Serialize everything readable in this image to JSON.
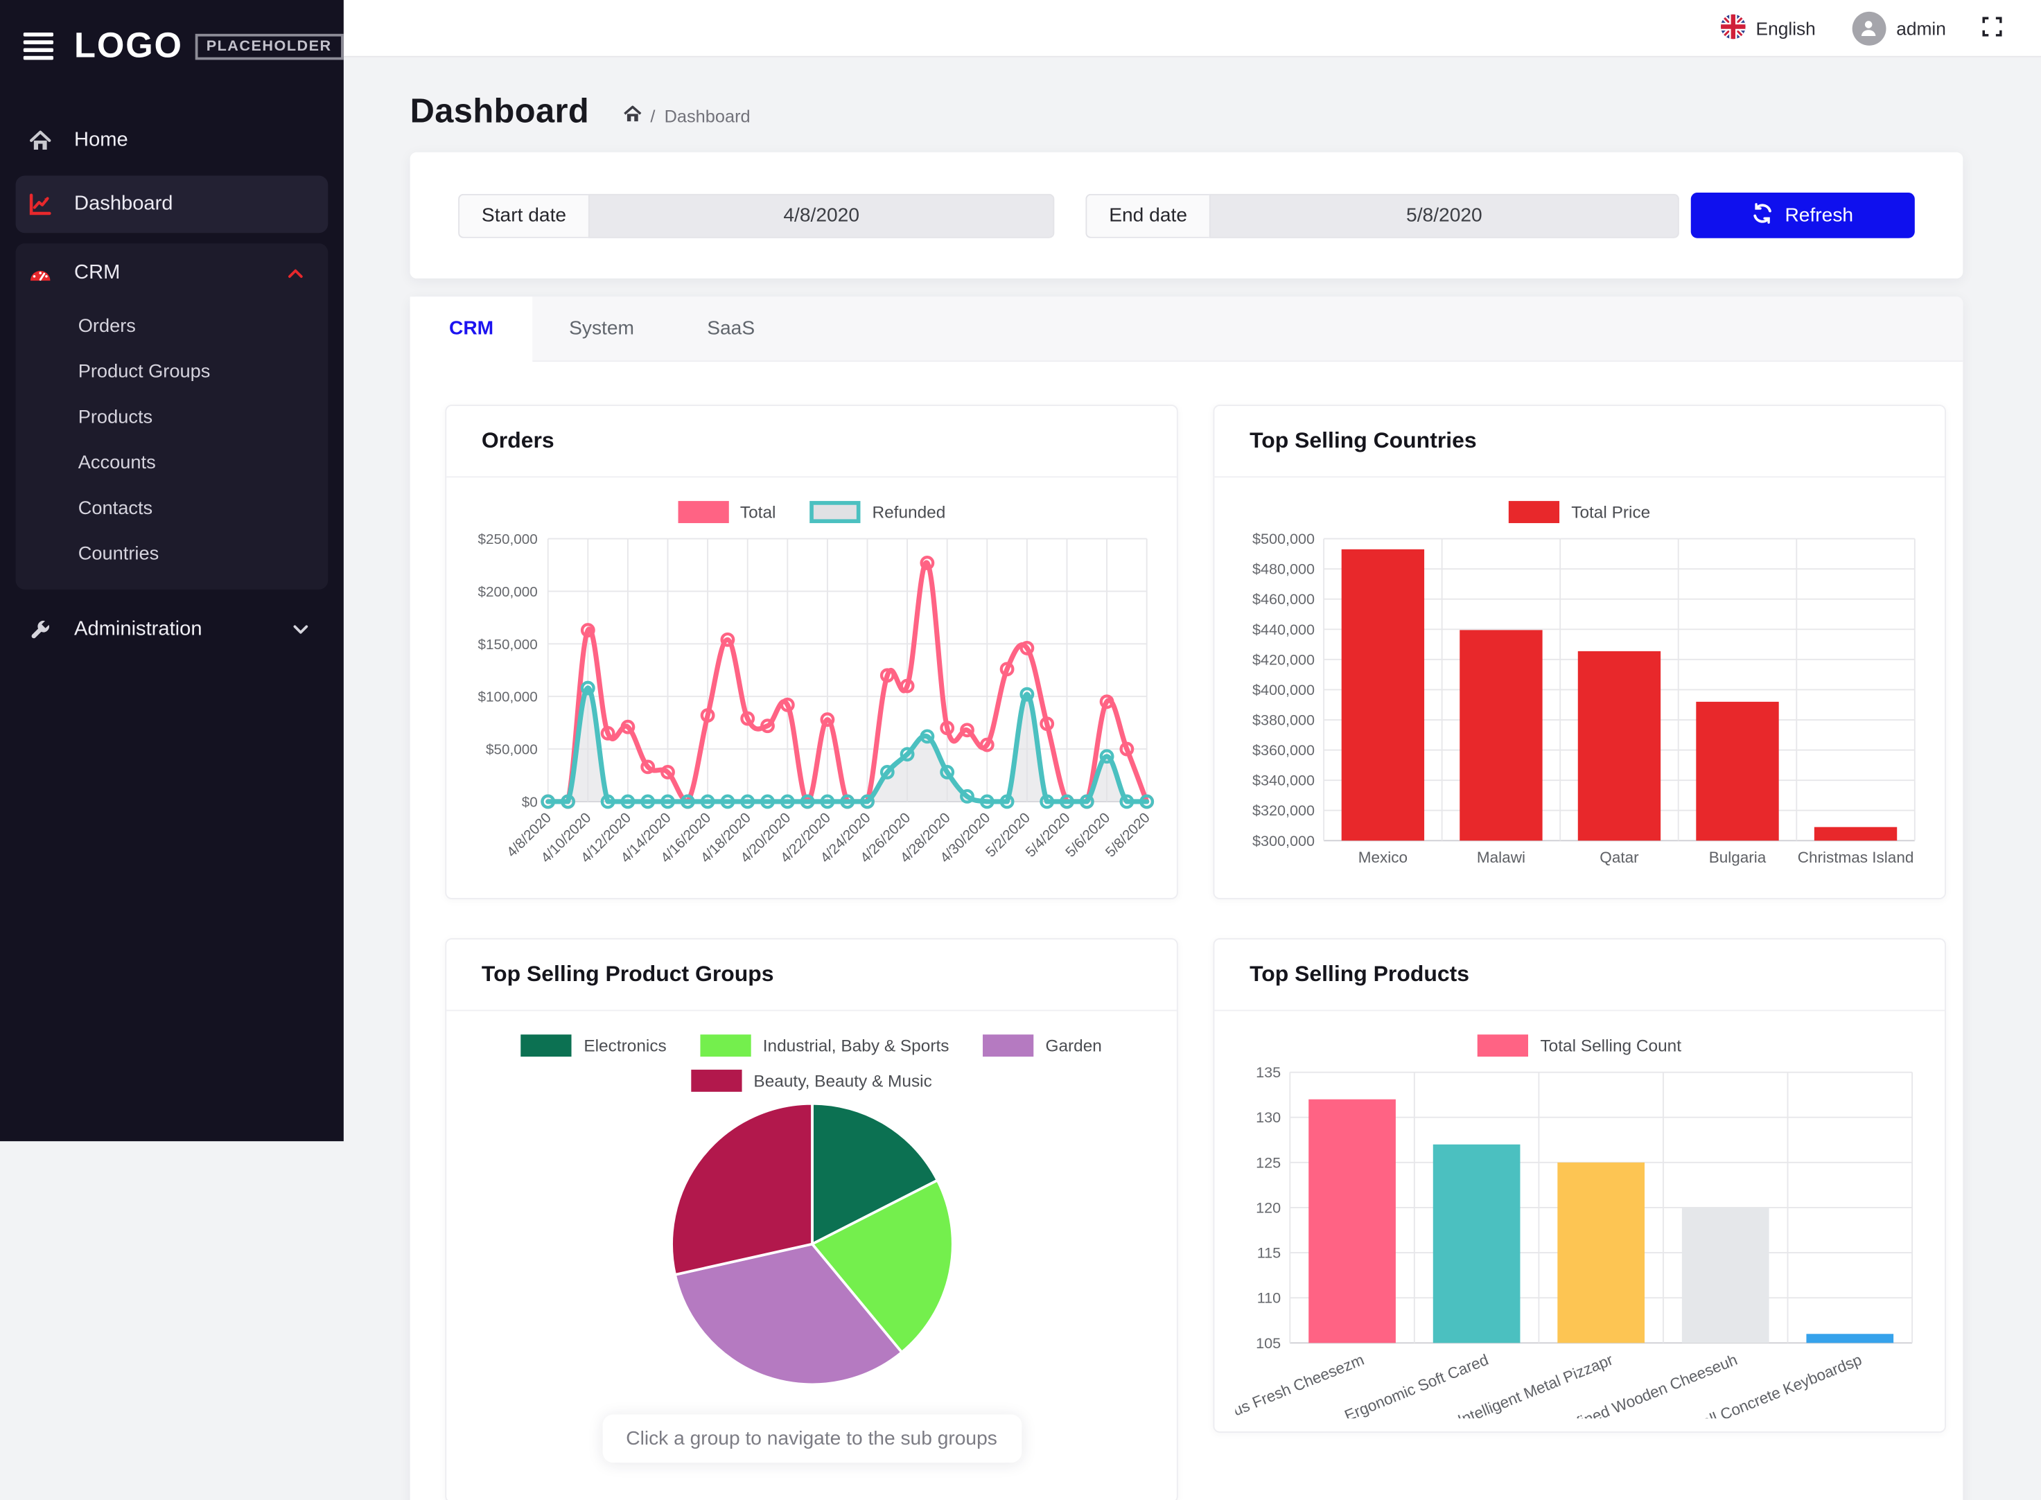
{
  "sidebar": {
    "logo_text": "LOGO",
    "logo_badge": "PLACEHOLDER",
    "home": "Home",
    "dashboard": "Dashboard",
    "crm": "CRM",
    "crm_children": [
      "Orders",
      "Product Groups",
      "Products",
      "Accounts",
      "Contacts",
      "Countries"
    ],
    "administration": "Administration"
  },
  "header": {
    "language": "English",
    "username": "admin"
  },
  "page": {
    "title": "Dashboard",
    "breadcrumb_separator": "/",
    "breadcrumb_current": "Dashboard"
  },
  "filters": {
    "start_label": "Start date",
    "start_value": "4/8/2020",
    "end_label": "End date",
    "end_value": "5/8/2020",
    "refresh_label": "Refresh"
  },
  "tabs": [
    {
      "label": "CRM",
      "active": true
    },
    {
      "label": "System",
      "active": false
    },
    {
      "label": "SaaS",
      "active": false
    }
  ],
  "colors": {
    "accent_blue": "#0f10ee",
    "accent_red": "#e8282c",
    "sidebar_bg": "#141221",
    "page_bg": "#f2f3f5"
  },
  "chart_data": [
    {
      "id": "orders",
      "type": "line",
      "title": "Orders",
      "x": [
        "4/8/2020",
        "4/9/2020",
        "4/10/2020",
        "4/11/2020",
        "4/12/2020",
        "4/13/2020",
        "4/14/2020",
        "4/15/2020",
        "4/16/2020",
        "4/17/2020",
        "4/18/2020",
        "4/19/2020",
        "4/20/2020",
        "4/21/2020",
        "4/22/2020",
        "4/23/2020",
        "4/24/2020",
        "4/25/2020",
        "4/26/2020",
        "4/27/2020",
        "4/28/2020",
        "4/29/2020",
        "4/30/2020",
        "5/1/2020",
        "5/2/2020",
        "5/3/2020",
        "5/4/2020",
        "5/5/2020",
        "5/6/2020",
        "5/7/2020",
        "5/8/2020"
      ],
      "tick_every": 2,
      "ylim": [
        0,
        250000
      ],
      "y_step": 50000,
      "y_format": "usd",
      "grid": true,
      "legend_position": "top",
      "series": [
        {
          "name": "Total",
          "color": "#ff6384",
          "values": [
            0,
            0,
            163000,
            65000,
            71000,
            33000,
            28000,
            0,
            82000,
            154000,
            79000,
            72000,
            92000,
            0,
            78000,
            0,
            0,
            120000,
            110000,
            227000,
            70000,
            68000,
            54000,
            126000,
            146000,
            74000,
            0,
            0,
            95000,
            50000,
            0
          ]
        },
        {
          "name": "Refunded",
          "color": "#4bc0c0",
          "fill": "#e1e1e4",
          "values": [
            0,
            0,
            108000,
            0,
            0,
            0,
            0,
            0,
            0,
            0,
            0,
            0,
            0,
            0,
            0,
            0,
            0,
            28000,
            45000,
            62000,
            28000,
            5000,
            0,
            0,
            102000,
            0,
            0,
            0,
            43000,
            0,
            0
          ]
        }
      ]
    },
    {
      "id": "countries",
      "type": "bar",
      "title": "Top Selling Countries",
      "legend": "Total Price",
      "legend_color": "#e8282b",
      "categories": [
        "Mexico",
        "Malawi",
        "Qatar",
        "Bulgaria",
        "Christmas Island"
      ],
      "values": [
        493000,
        439500,
        425500,
        392000,
        309000
      ],
      "color": "#e8282b",
      "ylim": [
        300000,
        500000
      ],
      "y_step": 20000,
      "y_format": "usd",
      "grid": true,
      "legend_position": "top"
    },
    {
      "id": "product_groups",
      "type": "pie",
      "title": "Top Selling Product Groups",
      "note": "Click a group to navigate to the sub groups",
      "slices": [
        {
          "label": "Electronics",
          "value": 17.5,
          "color": "#0c7152"
        },
        {
          "label": "Industrial, Baby & Sports",
          "value": 21.5,
          "color": "#74ef4d"
        },
        {
          "label": "Garden",
          "value": 32.5,
          "color": "#b57ac1"
        },
        {
          "label": "Beauty, Beauty & Music",
          "value": 28.5,
          "color": "#b2184c"
        }
      ],
      "legend_position": "top"
    },
    {
      "id": "products",
      "type": "bar",
      "title": "Top Selling Products",
      "legend": "Total Selling Count",
      "legend_color": "#ff6384",
      "categories": [
        "Gorgeous Fresh Cheesezm",
        "Ergonomic Soft Cared",
        "Intelligent Metal Pizzapr",
        "Refined Wooden Cheeseuh",
        "Small Concrete Keyboardsp"
      ],
      "values": [
        132,
        127,
        125,
        120,
        106
      ],
      "colors": [
        "#ff6384",
        "#4bc0c0",
        "#fdc553",
        "#e5e7ea",
        "#36a2eb"
      ],
      "ylim": [
        105,
        135
      ],
      "y_step": 5,
      "y_format": "plain",
      "label_rotation": -22,
      "grid": true,
      "legend_position": "top"
    }
  ]
}
